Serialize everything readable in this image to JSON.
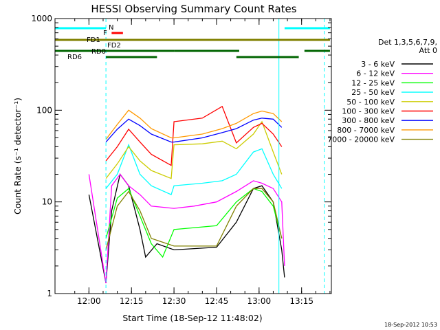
{
  "chart_data": {
    "type": "line",
    "title": "HESSI Observing Summary Count Rates",
    "xlabel": "Start Time (18-Sep-12 11:48:02)",
    "ylabel": "Count Rate (s⁻¹ detector⁻¹)",
    "y_scale": "log",
    "ylim": [
      1,
      1000
    ],
    "xlim": [
      "11:48:02",
      "13:25:30"
    ],
    "x_ticks": [
      "12:00",
      "12:15",
      "12:30",
      "12:45",
      "13:00",
      "13:15"
    ],
    "y_ticks": [
      "1",
      "10",
      "100",
      "1000"
    ],
    "legend_title": [
      "Det 1,3,5,6,7,9,",
      "Att 0"
    ],
    "legend_position": "right",
    "footer_date": "18-Sep-2012 10:53",
    "series": [
      {
        "name": "3 - 6 keV",
        "color": "#000000",
        "points": [
          [
            "12:00",
            12
          ],
          [
            "12:06",
            1.3
          ],
          [
            "12:08",
            8
          ],
          [
            "12:11",
            20
          ],
          [
            "12:14",
            15
          ],
          [
            "12:18",
            5
          ],
          [
            "12:20",
            2.5
          ],
          [
            "12:24",
            3.5
          ],
          [
            "12:30",
            3
          ],
          [
            "12:45",
            3.2
          ],
          [
            "12:52",
            6
          ],
          [
            "12:58",
            14
          ],
          [
            "13:01",
            15
          ],
          [
            "13:05",
            10
          ],
          [
            "13:08",
            3
          ],
          [
            "13:09",
            1.5
          ]
        ]
      },
      {
        "name": "6 - 12 keV",
        "color": "#ff00ff",
        "points": [
          [
            "12:00",
            20
          ],
          [
            "12:06",
            1.3
          ],
          [
            "12:08",
            15
          ],
          [
            "12:11",
            20
          ],
          [
            "12:14",
            15
          ],
          [
            "12:18",
            12
          ],
          [
            "12:22",
            9
          ],
          [
            "12:30",
            8.5
          ],
          [
            "12:37",
            9
          ],
          [
            "12:45",
            10
          ],
          [
            "12:52",
            13
          ],
          [
            "12:58",
            17
          ],
          [
            "13:01",
            16
          ],
          [
            "13:05",
            14
          ],
          [
            "13:08",
            10
          ],
          [
            "13:09",
            2
          ]
        ]
      },
      {
        "name": "12 - 25 keV",
        "color": "#00ff00",
        "points": [
          [
            "12:06",
            4
          ],
          [
            "12:10",
            11
          ],
          [
            "12:14",
            14
          ],
          [
            "12:18",
            7
          ],
          [
            "12:22",
            3.5
          ],
          [
            "12:26",
            2.5
          ],
          [
            "12:30",
            5
          ],
          [
            "12:45",
            5.5
          ],
          [
            "12:52",
            10
          ],
          [
            "12:58",
            14
          ],
          [
            "13:01",
            13
          ],
          [
            "13:05",
            9
          ],
          [
            "13:08",
            4
          ]
        ]
      },
      {
        "name": "25 - 50 keV",
        "color": "#00ffff",
        "points": [
          [
            "12:06",
            14
          ],
          [
            "12:10",
            20
          ],
          [
            "12:14",
            42
          ],
          [
            "12:18",
            20
          ],
          [
            "12:22",
            15
          ],
          [
            "12:29",
            12
          ],
          [
            "12:30",
            15
          ],
          [
            "12:40",
            16
          ],
          [
            "12:47",
            17
          ],
          [
            "12:52",
            20
          ],
          [
            "12:58",
            35
          ],
          [
            "13:01",
            38
          ],
          [
            "13:05",
            20
          ],
          [
            "13:08",
            14
          ]
        ]
      },
      {
        "name": "50 - 100 keV",
        "color": "#cccc00",
        "points": [
          [
            "12:06",
            18
          ],
          [
            "12:10",
            26
          ],
          [
            "12:14",
            40
          ],
          [
            "12:18",
            28
          ],
          [
            "12:22",
            22
          ],
          [
            "12:29",
            18
          ],
          [
            "12:30",
            42
          ],
          [
            "12:40",
            43
          ],
          [
            "12:47",
            46
          ],
          [
            "12:52",
            38
          ],
          [
            "12:58",
            55
          ],
          [
            "13:01",
            75
          ],
          [
            "13:05",
            35
          ],
          [
            "13:08",
            20
          ]
        ]
      },
      {
        "name": "100 - 300 keV",
        "color": "#ff0000",
        "points": [
          [
            "12:06",
            28
          ],
          [
            "12:10",
            40
          ],
          [
            "12:14",
            62
          ],
          [
            "12:18",
            45
          ],
          [
            "12:22",
            33
          ],
          [
            "12:29",
            25
          ],
          [
            "12:30",
            75
          ],
          [
            "12:40",
            82
          ],
          [
            "12:47",
            110
          ],
          [
            "12:52",
            44
          ],
          [
            "12:58",
            65
          ],
          [
            "13:01",
            72
          ],
          [
            "13:05",
            55
          ],
          [
            "13:08",
            40
          ]
        ]
      },
      {
        "name": "300 - 800 keV",
        "color": "#0000ff",
        "points": [
          [
            "12:06",
            45
          ],
          [
            "12:10",
            62
          ],
          [
            "12:14",
            80
          ],
          [
            "12:18",
            68
          ],
          [
            "12:22",
            55
          ],
          [
            "12:29",
            45
          ],
          [
            "12:30",
            45
          ],
          [
            "12:40",
            50
          ],
          [
            "12:47",
            57
          ],
          [
            "12:52",
            63
          ],
          [
            "12:58",
            78
          ],
          [
            "13:01",
            82
          ],
          [
            "13:05",
            80
          ],
          [
            "13:08",
            65
          ]
        ]
      },
      {
        "name": "800 - 7000 keV",
        "color": "#ff9900",
        "points": [
          [
            "12:06",
            48
          ],
          [
            "12:10",
            70
          ],
          [
            "12:14",
            100
          ],
          [
            "12:18",
            82
          ],
          [
            "12:22",
            63
          ],
          [
            "12:29",
            50
          ],
          [
            "12:30",
            50
          ],
          [
            "12:40",
            55
          ],
          [
            "12:47",
            63
          ],
          [
            "12:52",
            72
          ],
          [
            "12:58",
            92
          ],
          [
            "13:01",
            98
          ],
          [
            "13:05",
            92
          ],
          [
            "13:08",
            75
          ]
        ]
      },
      {
        "name": "7000 - 20000 keV",
        "color": "#808000",
        "points": [
          [
            "12:06",
            3
          ],
          [
            "12:10",
            9
          ],
          [
            "12:14",
            13
          ],
          [
            "12:18",
            8
          ],
          [
            "12:22",
            4
          ],
          [
            "12:30",
            3.3
          ],
          [
            "12:45",
            3.3
          ],
          [
            "12:52",
            9
          ],
          [
            "12:58",
            14
          ],
          [
            "13:01",
            14
          ],
          [
            "13:05",
            10
          ],
          [
            "13:08",
            4
          ]
        ]
      }
    ],
    "flag_bars": [
      {
        "label": "N",
        "color": "#00ffff",
        "segments": [
          [
            "11:48",
            "12:06"
          ],
          [
            "13:09",
            "13:25"
          ]
        ]
      },
      {
        "label": "F",
        "color": "#ff0000",
        "segments": [
          [
            "12:08",
            "12:12"
          ]
        ]
      },
      {
        "label": "FD1",
        "color": "#808000",
        "segments": [
          [
            "11:48",
            "13:25"
          ]
        ]
      },
      {
        "label": "FD2",
        "color": "#808000",
        "segments": []
      },
      {
        "label": "RD0",
        "color": "#006400",
        "segments": [
          [
            "11:48",
            "12:30"
          ],
          [
            "12:30",
            "12:53"
          ],
          [
            "13:16",
            "13:25"
          ]
        ]
      },
      {
        "label": "RD6",
        "color": "#006400",
        "segments": [
          [
            "12:06",
            "12:24"
          ],
          [
            "12:52",
            "13:14"
          ]
        ]
      }
    ],
    "vertical_markers": [
      {
        "time": "12:06",
        "color": "#00ffff",
        "style": "dashed"
      },
      {
        "time": "13:07",
        "color": "#00ffff",
        "style": "solid"
      },
      {
        "time": "13:23",
        "color": "#00ffff",
        "style": "dashed"
      }
    ],
    "grid": false
  }
}
